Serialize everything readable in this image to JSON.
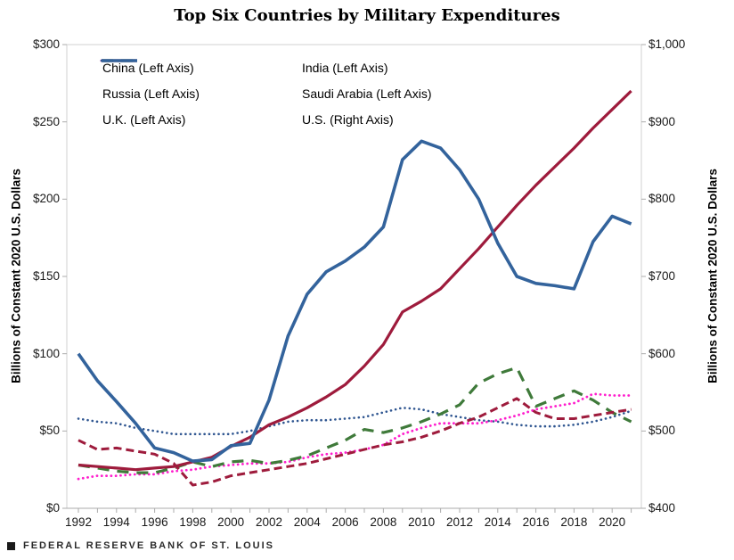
{
  "title": "Top Six Countries by Military Expenditures",
  "footer": {
    "brand": "FEDERAL RESERVE BANK OF ST. LOUIS"
  },
  "left_axis": {
    "label": "Billions of Constant 2020 U.S. Dollars",
    "min": 0,
    "max": 300,
    "ticks": [
      {
        "label": "$0",
        "value": 0
      },
      {
        "label": "$50",
        "value": 50
      },
      {
        "label": "$100",
        "value": 100
      },
      {
        "label": "$150",
        "value": 150
      },
      {
        "label": "$200",
        "value": 200
      },
      {
        "label": "$250",
        "value": 250
      },
      {
        "label": "$300",
        "value": 300
      }
    ]
  },
  "right_axis": {
    "label": "Billions of Constant 2020 U.S. Dollars",
    "min": 400,
    "max": 1000,
    "ticks": [
      {
        "label": "$400",
        "value": 400
      },
      {
        "label": "$500",
        "value": 500
      },
      {
        "label": "$600",
        "value": 600
      },
      {
        "label": "$700",
        "value": 700
      },
      {
        "label": "$800",
        "value": 800
      },
      {
        "label": "$900",
        "value": 900
      },
      {
        "label": "$1,000",
        "value": 1000
      }
    ]
  },
  "x_axis": {
    "labeled_years": [
      1992,
      1994,
      1996,
      1998,
      2000,
      2002,
      2004,
      2006,
      2008,
      2010,
      2012,
      2014,
      2016,
      2018,
      2020
    ]
  },
  "legend_order": [
    "China",
    "India",
    "Russia",
    "Saudi Arabia",
    "U.K.",
    "U.S."
  ],
  "chart_data": {
    "type": "line",
    "x": [
      1992,
      1993,
      1994,
      1995,
      1996,
      1997,
      1998,
      1999,
      2000,
      2001,
      2002,
      2003,
      2004,
      2005,
      2006,
      2007,
      2008,
      2009,
      2010,
      2011,
      2012,
      2013,
      2014,
      2015,
      2016,
      2017,
      2018,
      2019,
      2020,
      2021
    ],
    "xlim": [
      1992,
      2021
    ],
    "grid": false,
    "legend_position": "top-left-inside",
    "series": [
      {
        "name": "U.K.",
        "legend_label": "U.K. (Left Axis)",
        "axis": "left",
        "color": "#2E5590",
        "style": "dotted",
        "width": 2.6,
        "values": [
          58,
          56,
          55,
          52,
          50,
          48,
          48,
          48,
          48,
          50,
          53,
          56,
          57,
          57,
          58,
          59,
          62,
          65,
          64,
          61,
          59,
          57,
          56,
          54,
          53,
          53,
          54,
          56,
          59,
          63
        ]
      },
      {
        "name": "India",
        "legend_label": "India (Left Axis)",
        "axis": "left",
        "color": "#FF1ECD",
        "style": "dotted",
        "width": 2.8,
        "values": [
          19,
          21,
          21,
          22,
          22,
          24,
          25,
          27,
          28,
          29,
          29,
          30,
          33,
          35,
          36,
          38,
          41,
          48,
          52,
          55,
          55,
          55,
          57,
          60,
          64,
          66,
          68,
          74,
          73,
          73
        ]
      },
      {
        "name": "Saudi Arabia",
        "legend_label": "Saudi Arabia (Left Axis)",
        "axis": "left",
        "color": "#3F7A3A",
        "style": "dashed-long",
        "width": 3.2,
        "values": [
          28,
          26,
          24,
          23,
          23,
          26,
          30,
          27,
          30,
          31,
          29,
          31,
          34,
          39,
          44,
          51,
          49,
          52,
          56,
          61,
          67,
          81,
          87,
          91,
          66,
          71,
          76,
          70,
          62,
          56
        ]
      },
      {
        "name": "Russia",
        "legend_label": "Russia (Left Axis)",
        "axis": "left",
        "color": "#9E1B3C",
        "style": "dashed",
        "width": 3,
        "values": [
          44,
          38,
          39,
          37,
          35,
          29,
          15,
          17,
          21,
          23,
          25,
          27,
          29,
          32,
          35,
          38,
          41,
          43,
          46,
          50,
          55,
          59,
          65,
          71,
          62,
          58,
          58,
          60,
          62,
          64
        ]
      },
      {
        "name": "China",
        "legend_label": "China (Left Axis)",
        "axis": "left",
        "color": "#9E1B3C",
        "style": "solid",
        "width": 3.2,
        "values": [
          28,
          27,
          26,
          25,
          26,
          27,
          30,
          33,
          40,
          46,
          54,
          59,
          65,
          72,
          80,
          92,
          106,
          127,
          134,
          142,
          155,
          168,
          182,
          196,
          209,
          221,
          233,
          246,
          258,
          270
        ]
      },
      {
        "name": "U.S.",
        "legend_label": "U.S. (Right Axis)",
        "axis": "right",
        "color": "#33639C",
        "style": "solid",
        "width": 3.6,
        "values": [
          600,
          565,
          538,
          510,
          478,
          472,
          461,
          463,
          481,
          484,
          540,
          623,
          677,
          706,
          720,
          738,
          764,
          851,
          875,
          866,
          838,
          800,
          743,
          700,
          691,
          688,
          684,
          745,
          778,
          768
        ]
      }
    ]
  }
}
